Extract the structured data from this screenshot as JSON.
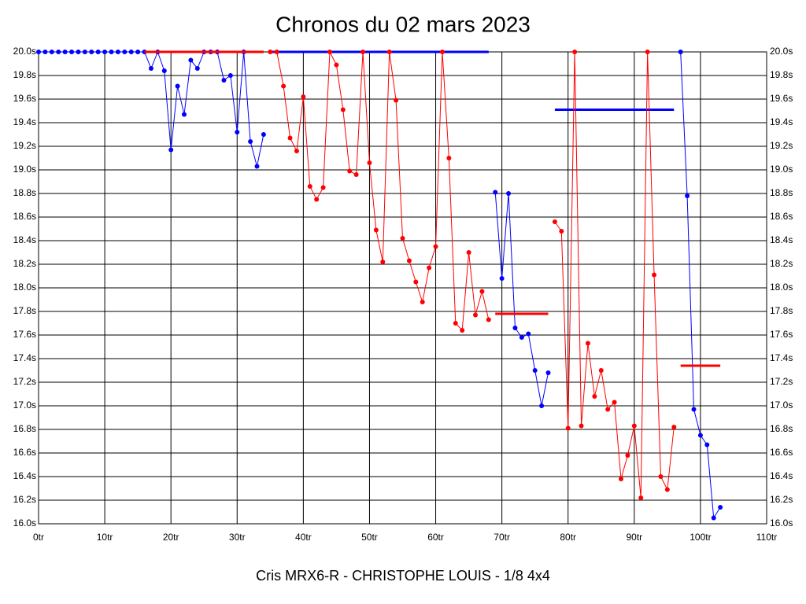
{
  "chart_data": {
    "type": "line",
    "title": "Chronos du 02 mars 2023",
    "subtitle": "Cris MRX6-R - CHRISTOPHE LOUIS - 1/8 4x4",
    "x": [
      0,
      1,
      2,
      3,
      4,
      5,
      6,
      7,
      8,
      9,
      10,
      11,
      12,
      13,
      14,
      15,
      16,
      17,
      18,
      19,
      20,
      21,
      22,
      23,
      24,
      25,
      26,
      27,
      28,
      29,
      30,
      31,
      32,
      33,
      34,
      35,
      36,
      37,
      38,
      39,
      40,
      41,
      42,
      43,
      44,
      45,
      46,
      47,
      48,
      49,
      50,
      51,
      52,
      53,
      54,
      55,
      56,
      57,
      58,
      59,
      60,
      61,
      62,
      63,
      64,
      65,
      66,
      67,
      68,
      69,
      70,
      71,
      72,
      73,
      74,
      75,
      76,
      77,
      78,
      79,
      80,
      81,
      82,
      83,
      84,
      85,
      86,
      87,
      88,
      89,
      90,
      91,
      92,
      93,
      94,
      95,
      96,
      97,
      98,
      99,
      100,
      101,
      102,
      103
    ],
    "series": [
      {
        "color": "#0000ff",
        "values": [
          20.0,
          20.0,
          20.0,
          20.0,
          20.0,
          20.0,
          20.0,
          20.0,
          20.0,
          20.0,
          20.0,
          20.0,
          20.0,
          20.0,
          20.0,
          20.0,
          20.0,
          19.86,
          20.0,
          19.84,
          19.17,
          19.71,
          19.47,
          19.93,
          19.86,
          20.0,
          20.0,
          20.0,
          19.76,
          19.8,
          19.32,
          20.0,
          19.24,
          19.03,
          19.3,
          null,
          null,
          null,
          null,
          null,
          null,
          null,
          null,
          null,
          null,
          null,
          null,
          null,
          null,
          null,
          null,
          null,
          null,
          null,
          null,
          null,
          null,
          null,
          null,
          null,
          null,
          null,
          null,
          null,
          null,
          null,
          null,
          null,
          null,
          18.81,
          18.08,
          18.8,
          17.66,
          17.58,
          17.61,
          17.3,
          17.0,
          17.28,
          null,
          null,
          null,
          null,
          null,
          null,
          null,
          null,
          null,
          null,
          null,
          null,
          null,
          null,
          null,
          null,
          null,
          null,
          null,
          20.0,
          18.78,
          16.97,
          16.75,
          16.67,
          16.05,
          16.14
        ],
        "averages": [
          {
            "x": [
              35,
              68
            ],
            "value": 20.0
          },
          {
            "x": [
              78,
              96
            ],
            "value": 19.51
          }
        ]
      },
      {
        "color": "#ff0000",
        "values": [
          null,
          null,
          null,
          null,
          null,
          null,
          null,
          null,
          null,
          null,
          null,
          null,
          null,
          null,
          null,
          null,
          null,
          null,
          null,
          null,
          null,
          null,
          null,
          null,
          null,
          null,
          null,
          null,
          null,
          null,
          null,
          null,
          null,
          null,
          null,
          20.0,
          20.0,
          19.71,
          19.27,
          19.16,
          19.62,
          18.86,
          18.75,
          18.85,
          20.0,
          19.89,
          19.51,
          18.99,
          18.96,
          20.0,
          19.06,
          18.49,
          18.22,
          20.0,
          19.59,
          18.42,
          18.23,
          18.05,
          17.88,
          18.17,
          18.35,
          20.0,
          19.1,
          17.7,
          17.64,
          18.3,
          17.77,
          17.97,
          17.73,
          null,
          null,
          null,
          null,
          null,
          null,
          null,
          null,
          null,
          18.56,
          18.48,
          16.81,
          20.0,
          16.83,
          17.53,
          17.08,
          17.3,
          16.97,
          17.03,
          16.38,
          16.58,
          16.83,
          16.22,
          20.0,
          18.11,
          16.4,
          16.29,
          16.82,
          null,
          null,
          null,
          null,
          null,
          null,
          null
        ],
        "averages": [
          {
            "x": [
              16,
              34
            ],
            "value": 20.0
          },
          {
            "x": [
              69,
              77
            ],
            "value": 17.78
          },
          {
            "x": [
              97,
              103
            ],
            "value": 17.34
          }
        ]
      }
    ],
    "xlim": [
      0,
      110
    ],
    "xticks": [
      {
        "value": 0,
        "label": "0tr"
      },
      {
        "value": 10,
        "label": "10tr"
      },
      {
        "value": 20,
        "label": "20tr"
      },
      {
        "value": 30,
        "label": "30tr"
      },
      {
        "value": 40,
        "label": "40tr"
      },
      {
        "value": 50,
        "label": "50tr"
      },
      {
        "value": 60,
        "label": "60tr"
      },
      {
        "value": 70,
        "label": "70tr"
      },
      {
        "value": 80,
        "label": "80tr"
      },
      {
        "value": 90,
        "label": "90tr"
      },
      {
        "value": 100,
        "label": "100tr"
      },
      {
        "value": 110,
        "label": "110tr"
      }
    ],
    "ylim": [
      16,
      20
    ],
    "yticks": [
      {
        "value": 16.0,
        "label": "16.0s"
      },
      {
        "value": 16.2,
        "label": "16.2s"
      },
      {
        "value": 16.4,
        "label": "16.4s"
      },
      {
        "value": 16.6,
        "label": "16.6s"
      },
      {
        "value": 16.8,
        "label": "16.8s"
      },
      {
        "value": 17.0,
        "label": "17.0s"
      },
      {
        "value": 17.2,
        "label": "17.2s"
      },
      {
        "value": 17.4,
        "label": "17.4s"
      },
      {
        "value": 17.6,
        "label": "17.6s"
      },
      {
        "value": 17.8,
        "label": "17.8s"
      },
      {
        "value": 18.0,
        "label": "18.0s"
      },
      {
        "value": 18.2,
        "label": "18.2s"
      },
      {
        "value": 18.4,
        "label": "18.4s"
      },
      {
        "value": 18.6,
        "label": "18.6s"
      },
      {
        "value": 18.8,
        "label": "18.8s"
      },
      {
        "value": 19.0,
        "label": "19.0s"
      },
      {
        "value": 19.2,
        "label": "19.2s"
      },
      {
        "value": 19.4,
        "label": "19.4s"
      },
      {
        "value": 19.6,
        "label": "19.6s"
      },
      {
        "value": 19.8,
        "label": "19.8s"
      },
      {
        "value": 20.0,
        "label": "20.0s"
      }
    ],
    "grid": true
  }
}
